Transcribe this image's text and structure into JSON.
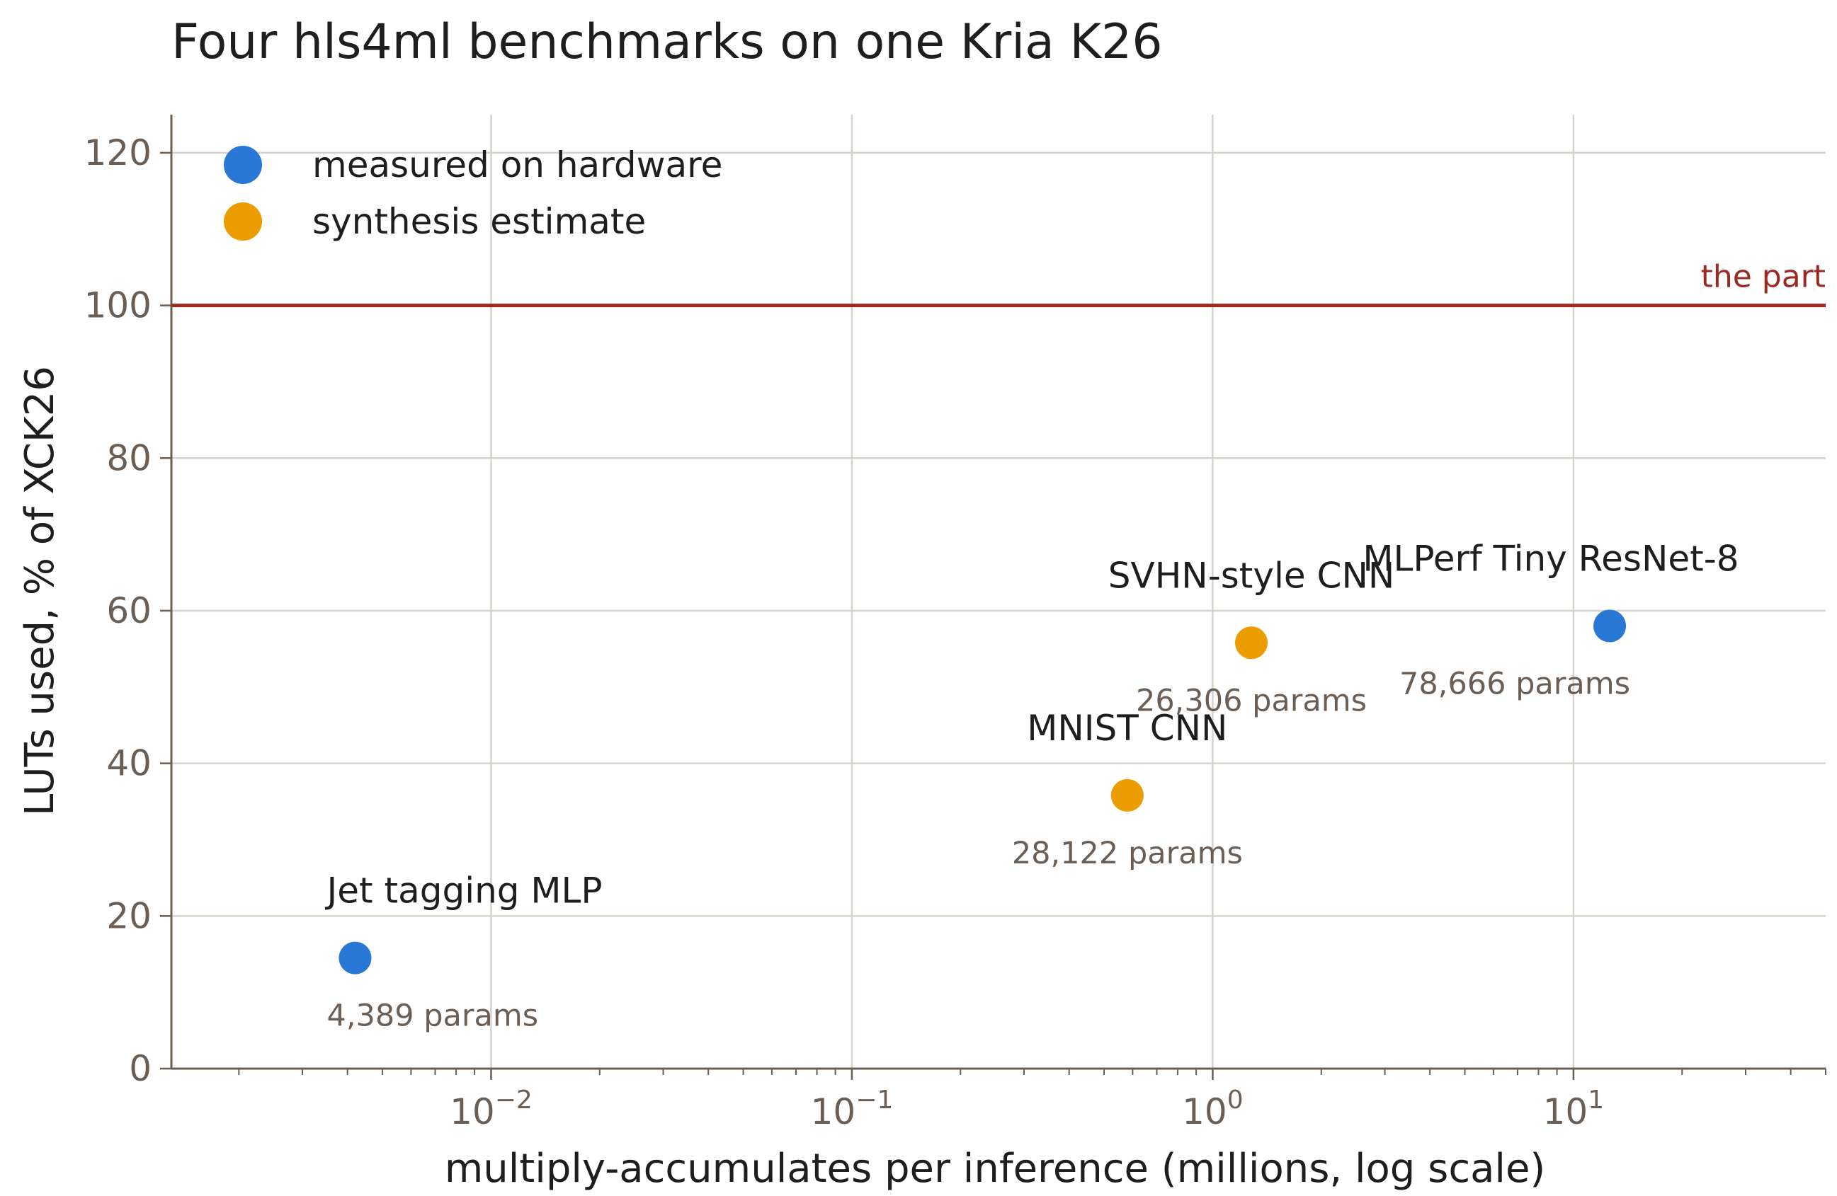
{
  "chart_data": {
    "type": "scatter",
    "title": "Four hls4ml benchmarks on one Kria K26",
    "xlabel": "multiply-accumulates per inference (millions, log scale)",
    "ylabel": "LUTs used, % of XCK26",
    "xscale": "log",
    "xlim": [
      0.0013,
      50
    ],
    "ylim": [
      0,
      125
    ],
    "x_ticks": [
      {
        "value": 0.01,
        "base": "10",
        "exp": "−2"
      },
      {
        "value": 0.1,
        "base": "10",
        "exp": "−1"
      },
      {
        "value": 1,
        "base": "10",
        "exp": "0"
      },
      {
        "value": 10,
        "base": "10",
        "exp": "1"
      }
    ],
    "y_ticks": [
      0,
      20,
      40,
      60,
      80,
      100,
      120
    ],
    "grid": true,
    "legend": {
      "placement": "top-left",
      "entries": [
        {
          "label": "measured on hardware",
          "color": "#2a78d6"
        },
        {
          "label": "synthesis estimate",
          "color": "#eb9d00"
        }
      ]
    },
    "reference_line": {
      "y": 100,
      "label": "the part",
      "color": "#9b2a22"
    },
    "points": [
      {
        "name": "Jet tagging MLP",
        "x": 0.0042,
        "y": 14.5,
        "params": "4,389 params",
        "kind": "measured on hardware"
      },
      {
        "name": "MNIST CNN",
        "x": 0.58,
        "y": 35.8,
        "params": "28,122 params",
        "kind": "synthesis estimate"
      },
      {
        "name": "SVHN-style CNN",
        "x": 1.28,
        "y": 55.8,
        "params": "26,306 params",
        "kind": "synthesis estimate"
      },
      {
        "name": "MLPerf Tiny ResNet-8",
        "x": 12.6,
        "y": 58.0,
        "params": "78,666 params",
        "kind": "measured on hardware"
      }
    ],
    "colors": {
      "measured": "#2a78d6",
      "estimate": "#eb9d00",
      "reference": "#9b2a22",
      "grid": "#d6d3cc",
      "axis": "#6b5f55"
    }
  }
}
